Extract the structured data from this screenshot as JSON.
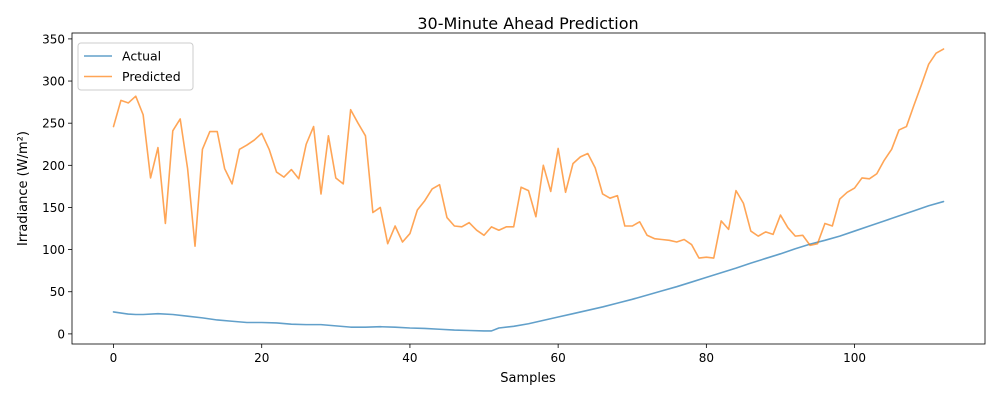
{
  "chart_data": {
    "type": "line",
    "title": "30-Minute Ahead Prediction",
    "xlabel": "Samples",
    "ylabel": "Irradiance (W/m²)",
    "xlim": [
      -5.6,
      117.6
    ],
    "ylim": [
      -12,
      357
    ],
    "xticks": [
      0,
      20,
      40,
      60,
      80,
      100
    ],
    "yticks": [
      0,
      50,
      100,
      150,
      200,
      250,
      300,
      350
    ],
    "grid": false,
    "legend_position": "top-left",
    "series": [
      {
        "name": "Actual",
        "color": "#1f77b4",
        "x": [
          0,
          2,
          3,
          4,
          6,
          8,
          10,
          12,
          14,
          16,
          18,
          20,
          22,
          24,
          26,
          28,
          30,
          32,
          34,
          36,
          38,
          40,
          42,
          44,
          46,
          48,
          50,
          51,
          52,
          54,
          56,
          58,
          60,
          62,
          64,
          66,
          68,
          70,
          72,
          74,
          76,
          78,
          80,
          82,
          84,
          86,
          88,
          90,
          92,
          94,
          96,
          98,
          100,
          102,
          104,
          106,
          108,
          110,
          112
        ],
        "y": [
          26,
          23.5,
          23,
          23,
          24,
          23,
          21,
          19,
          16.5,
          15,
          13.5,
          13.5,
          13,
          11.5,
          11,
          11,
          9.5,
          8,
          8,
          8.5,
          8,
          7,
          6.5,
          5.5,
          4.5,
          4,
          3.5,
          3.5,
          7,
          9,
          12,
          16,
          20,
          24,
          28,
          32,
          36.5,
          41,
          46,
          51,
          56,
          61.5,
          67,
          72.5,
          78,
          84,
          89.5,
          95,
          101,
          106.5,
          111,
          116,
          122,
          128,
          134,
          140,
          146,
          152,
          157
        ]
      },
      {
        "name": "Predicted",
        "color": "#ff7f0e",
        "x": [
          0,
          1,
          2,
          3,
          4,
          5,
          6,
          7,
          8,
          9,
          10,
          11,
          12,
          13,
          14,
          15,
          16,
          17,
          18,
          19,
          20,
          21,
          22,
          23,
          24,
          25,
          26,
          27,
          28,
          29,
          30,
          31,
          32,
          33,
          34,
          35,
          36,
          37,
          38,
          39,
          40,
          41,
          42,
          43,
          44,
          45,
          46,
          47,
          48,
          49,
          50,
          51,
          52,
          53,
          54,
          55,
          56,
          57,
          58,
          59,
          60,
          61,
          62,
          63,
          64,
          65,
          66,
          67,
          68,
          69,
          70,
          71,
          72,
          73,
          74,
          75,
          76,
          77,
          78,
          79,
          80,
          81,
          82,
          83,
          84,
          85,
          86,
          87,
          88,
          89,
          90,
          91,
          92,
          93,
          94,
          95,
          96,
          97,
          98,
          99,
          100,
          101,
          102,
          103,
          104,
          105,
          106,
          107,
          108,
          109,
          110,
          111,
          112
        ],
        "y": [
          246,
          277,
          274,
          282,
          260,
          185,
          221,
          131,
          241,
          255,
          196,
          104,
          219,
          240,
          240,
          196,
          178,
          219,
          224,
          230,
          238,
          219,
          192,
          186,
          195,
          184,
          225,
          246,
          166,
          235,
          185,
          178,
          266,
          250,
          235,
          144,
          150,
          107,
          128,
          109,
          119,
          147,
          158,
          172,
          177,
          138,
          128,
          127,
          132,
          123,
          117,
          127,
          123,
          127,
          127,
          174,
          170,
          139,
          200,
          169,
          220,
          168,
          202,
          210,
          214,
          197,
          166,
          161,
          164,
          128,
          128,
          133,
          117,
          113,
          112,
          111,
          109,
          112,
          106,
          90,
          91,
          90,
          134,
          124,
          170,
          155,
          122,
          116,
          121,
          118,
          141,
          126,
          116,
          117,
          105,
          107,
          131,
          128,
          160,
          168,
          173,
          185,
          184,
          190,
          206,
          219,
          242,
          246,
          271,
          295,
          320,
          333,
          338
        ]
      }
    ]
  }
}
